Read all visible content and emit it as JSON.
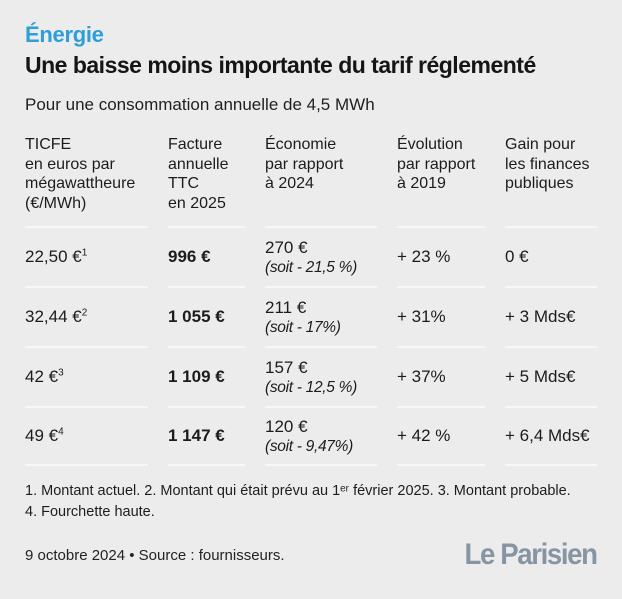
{
  "colors": {
    "background": "#ececec",
    "accent_blue": "#2d9ed8",
    "text": "#1c1c1c",
    "separator": "#f7f7f8",
    "brand_gray_blue": "#8795a3"
  },
  "header": {
    "kicker": "Énergie",
    "title": "Une baisse moins importante du tarif réglementé",
    "subtitle": "Pour une consommation annuelle de 4,5 MWh"
  },
  "table": {
    "headers": {
      "ticfe": "TICFE\nen euros par\nmégawattheure\n(€/MWh)",
      "facture": "Facture\nannuelle\nTTC\nen 2025",
      "economie": "Économie\npar rapport\nà 2024",
      "evolution": "Évolution\npar rapport\nà 2019",
      "gain": "Gain pour\nles finances\npubliques"
    },
    "rows": [
      {
        "ticfe": "22,50 €",
        "ticfe_sup": "1",
        "facture": "996 €",
        "economie": "270 €",
        "economie_note": "(soit - 21,5 %)",
        "evolution": "+ 23 %",
        "gain": "0 €"
      },
      {
        "ticfe": "32,44 €",
        "ticfe_sup": "2",
        "facture": "1 055 €",
        "economie": "211 €",
        "economie_note": "(soit - 17%)",
        "evolution": "+ 31%",
        "gain": "+ 3 Mds€"
      },
      {
        "ticfe": "42 €",
        "ticfe_sup": "3",
        "facture": "1 109 €",
        "economie": "157 €",
        "economie_note": "(soit - 12,5 %)",
        "evolution": "+ 37%",
        "gain": "+ 5 Mds€"
      },
      {
        "ticfe": "49 €",
        "ticfe_sup": "4",
        "facture": "1 147 €",
        "economie": "120 €",
        "economie_note": "(soit - 9,47%)",
        "evolution": "+ 42 %",
        "gain": "+ 6,4 Mds€"
      }
    ]
  },
  "chart_data": {
    "type": "table",
    "title": "Une baisse moins importante du tarif réglementé",
    "subtitle": "Pour une consommation annuelle de 4,5 MWh",
    "columns": [
      "TICFE en euros par mégawattheure (€/MWh)",
      "Facture annuelle TTC en 2025",
      "Économie par rapport à 2024",
      "Évolution par rapport à 2019",
      "Gain pour les finances publiques"
    ],
    "rows": [
      [
        "22,50 €¹",
        "996 €",
        "270 € (soit - 21,5 %)",
        "+ 23 %",
        "0 €"
      ],
      [
        "32,44 €²",
        "1 055 €",
        "211 € (soit - 17%)",
        "+ 31%",
        "+ 3 Mds€"
      ],
      [
        "42 €³",
        "1 109 €",
        "157 € (soit - 12,5 %)",
        "+ 37%",
        "+ 5 Mds€"
      ],
      [
        "49 €⁴",
        "1 147 €",
        "120 € (soit - 9,47%)",
        "+ 42 %",
        "+ 6,4 Mds€"
      ]
    ],
    "footnotes": "1. Montant actuel. 2. Montant qui était prévu au 1ᵉʳ février 2025. 3. Montant probable. 4. Fourchette haute.",
    "date": "9 octobre 2024",
    "source": "Source : fournisseurs."
  },
  "footnotes": "1. Montant actuel. 2. Montant qui était prévu au 1ᵉʳ février 2025. 3. Montant probable.\n4. Fourchette haute.",
  "footer": {
    "date_source": "9 octobre 2024 • Source : fournisseurs.",
    "brand": "Le Parisien"
  }
}
